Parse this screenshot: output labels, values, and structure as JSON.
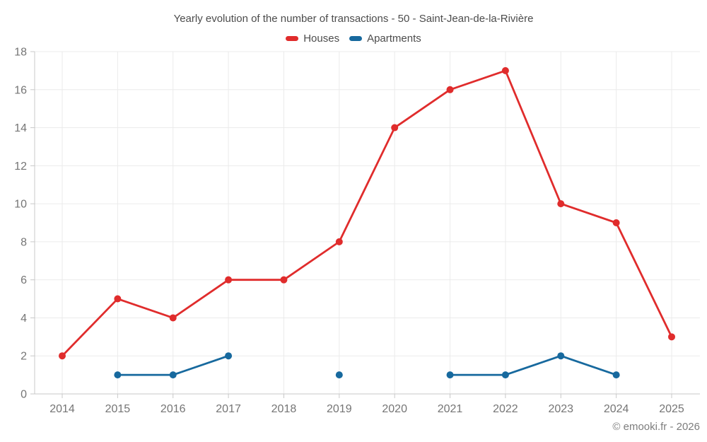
{
  "chart_data": {
    "type": "line",
    "title": "Yearly evolution of the number of transactions - 50 - Saint-Jean-de-la-Rivière",
    "categories": [
      "2014",
      "2015",
      "2016",
      "2017",
      "2018",
      "2019",
      "2020",
      "2021",
      "2022",
      "2023",
      "2024",
      "2025"
    ],
    "series": [
      {
        "name": "Houses",
        "color": "#e02c2c",
        "values": [
          2,
          5,
          4,
          6,
          6,
          8,
          14,
          16,
          17,
          10,
          9,
          3
        ]
      },
      {
        "name": "Apartments",
        "color": "#17699e",
        "values": [
          null,
          1,
          1,
          2,
          null,
          1,
          null,
          1,
          1,
          2,
          1,
          null
        ]
      }
    ],
    "xlabel": "",
    "ylabel": "",
    "ylim": [
      0,
      18
    ],
    "y_ticks": [
      0,
      2,
      4,
      6,
      8,
      10,
      12,
      14,
      16,
      18
    ],
    "grid": true,
    "legend_position": "top"
  },
  "colors": {
    "grid": "#ebebeb",
    "axis": "#c8c8c8",
    "tick_label": "#757575",
    "title_text": "#4c4c4c",
    "footer_text": "#7d7d7d",
    "background": "#ffffff"
  },
  "footer": {
    "copyright": "© emooki.fr - 2026"
  }
}
